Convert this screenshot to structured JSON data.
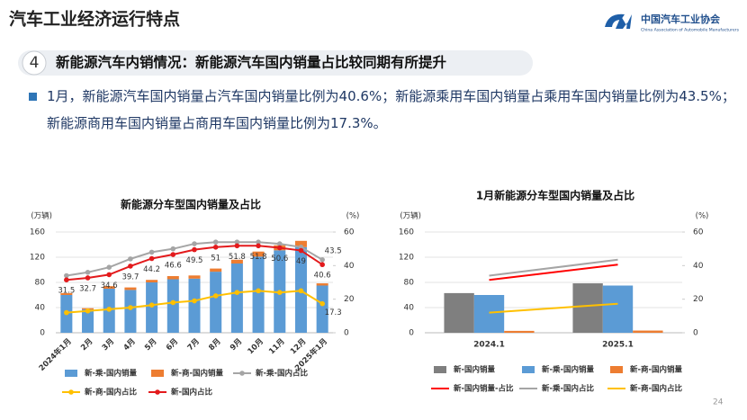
{
  "header": {
    "title": "汽车工业经济运行特点",
    "logo_cn": "中国汽车工业协会",
    "logo_en": "China Association of Automobile Manufacturers"
  },
  "section": {
    "number": "4",
    "title": "新能源汽车内销情况：新能源汽车国内销量占比较同期有所提升"
  },
  "body": "1月，新能源汽车国内销量占汽车国内销量比例为40.6%；新能源乘用车国内销量占乘用车国内销量比例为43.5%；新能源商用车国内销量占商用车国内销量比例为17.3%。",
  "page_number": "24",
  "chart_data": [
    {
      "type": "combo",
      "title": "新能源分车型国内销量及占比",
      "y_unit": "(万辆)",
      "y2_unit": "(%)",
      "categories": [
        "2024年1月",
        "2月",
        "3月",
        "4月",
        "5月",
        "6月",
        "7月",
        "8月",
        "9月",
        "10月",
        "11月",
        "12月",
        "2025年1月"
      ],
      "barmode": "stack",
      "markers": true,
      "grid": true,
      "ylim": [
        0,
        160
      ],
      "yticks": [
        0,
        40,
        80,
        120,
        160
      ],
      "y2lim": [
        0,
        60
      ],
      "y2ticks": [
        0,
        20,
        40,
        60
      ],
      "series": [
        {
          "name": "新-乘-国内销量",
          "type": "bar",
          "color": "#5b9bd5",
          "values": [
            60,
            37,
            70,
            68,
            80,
            85,
            86,
            97,
            110,
            121,
            131,
            136,
            75
          ]
        },
        {
          "name": "新-商-国内销量",
          "type": "bar",
          "color": "#ed7d31",
          "values": [
            3,
            2,
            4,
            4,
            4,
            5,
            5,
            5,
            6,
            8,
            8,
            10,
            3.5
          ]
        },
        {
          "name": "新-乘-国内占比",
          "type": "line",
          "axis": "y2",
          "color": "#a5a5a5",
          "data_labels": "last",
          "values": [
            34,
            36,
            39,
            44,
            48,
            50,
            53,
            54,
            54,
            54,
            53,
            51,
            43.5
          ]
        },
        {
          "name": "新-商-国内占比",
          "type": "line",
          "axis": "y2",
          "color": "#ffc000",
          "data_labels": "last",
          "values": [
            12,
            13,
            14,
            15,
            16.5,
            18,
            19,
            22,
            24,
            25,
            24,
            25,
            17.3
          ]
        },
        {
          "name": "新-国内占比",
          "type": "line",
          "axis": "y2",
          "color": "#e31a1c",
          "data_labels": "all",
          "values": [
            31.5,
            32.7,
            34.6,
            39.7,
            44.2,
            46.6,
            49.5,
            51,
            51.8,
            51.8,
            50.6,
            49,
            40.6
          ]
        }
      ]
    },
    {
      "type": "combo",
      "title": "1月新能源分车型国内销量及占比",
      "y_unit": "(万辆)",
      "y2_unit": "(%)",
      "categories": [
        "2024.1",
        "2025.1"
      ],
      "barmode": "group",
      "markers": false,
      "grid": true,
      "ylim": [
        0,
        160
      ],
      "yticks": [
        0,
        40,
        80,
        120,
        160
      ],
      "y2lim": [
        0,
        60
      ],
      "y2ticks": [
        0,
        20,
        40,
        60
      ],
      "series": [
        {
          "name": "新-国内销量",
          "type": "bar",
          "color": "#7f7f7f",
          "values": [
            63,
            78.5
          ]
        },
        {
          "name": "新-乘-国内销量",
          "type": "bar",
          "color": "#5b9bd5",
          "values": [
            60,
            75
          ]
        },
        {
          "name": "新-商-国内销量",
          "type": "bar",
          "color": "#ed7d31",
          "values": [
            3,
            3.5
          ]
        },
        {
          "name": "新-国内销量-占比",
          "type": "line",
          "axis": "y2",
          "color": "#ff0000",
          "values": [
            31.5,
            40.6
          ]
        },
        {
          "name": "新-乘-国内占比",
          "type": "line",
          "axis": "y2",
          "color": "#a5a5a5",
          "values": [
            34,
            43.5
          ]
        },
        {
          "name": "新-商-国内占比",
          "type": "line",
          "axis": "y2",
          "color": "#ffc000",
          "values": [
            12,
            17.3
          ]
        }
      ]
    }
  ]
}
